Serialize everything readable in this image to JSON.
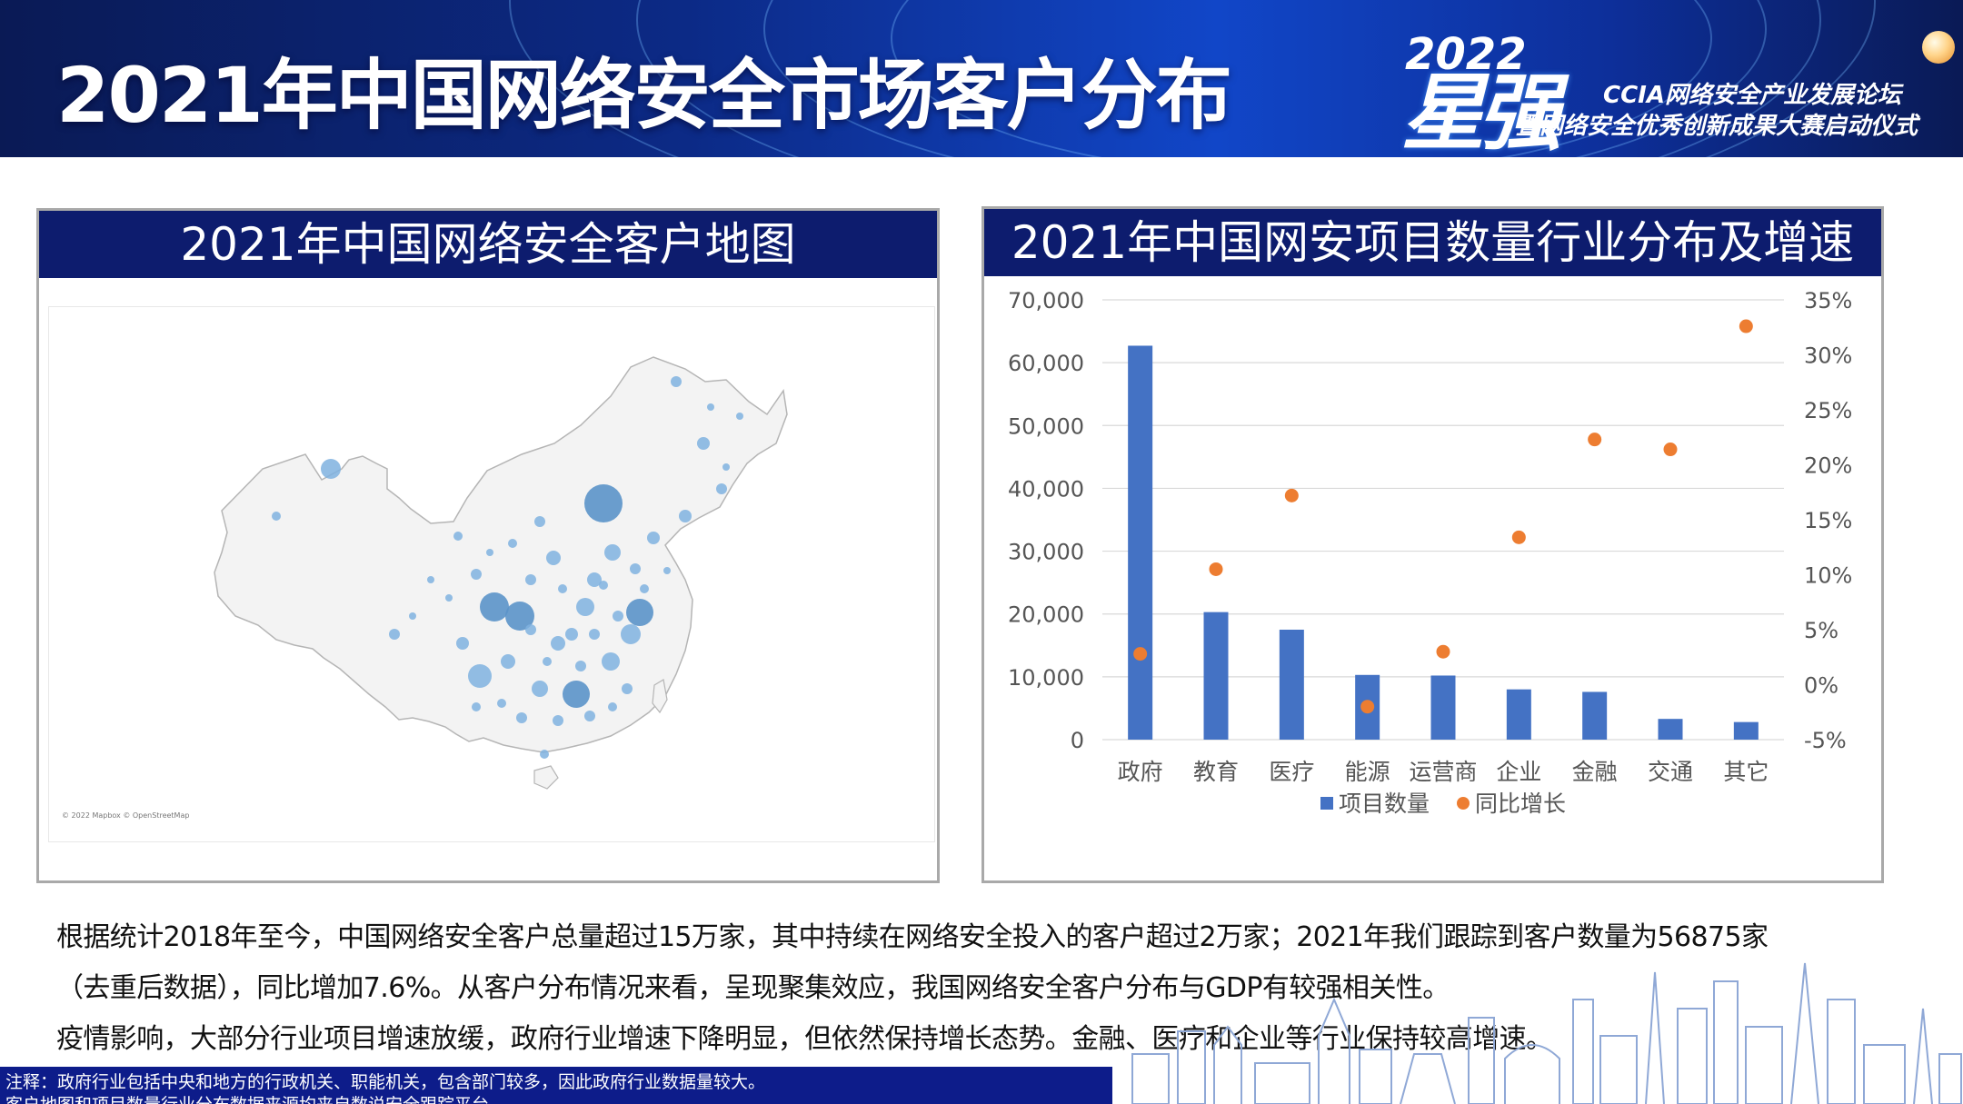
{
  "header": {
    "title": "2021年中国网络安全市场客户分布",
    "logo": {
      "year": "2022",
      "mark": "星强",
      "line1": "CCIA网络安全产业发展论坛",
      "line2": "暨网络安全优秀创新成果大赛启动仪式"
    }
  },
  "map_panel": {
    "title": "2021年中国网络安全客户地图",
    "credit": "© 2022 Mapbox © OpenStreetMap",
    "colors": {
      "bubble": "#7fb2df",
      "bubble_large": "#5b93c9",
      "land": "#f3f3f3",
      "border": "#b5b5b5"
    }
  },
  "chart_panel": {
    "title": "2021年中国网安项目数量行业分布及增速"
  },
  "chart_data": {
    "type": "bar",
    "categories": [
      "政府",
      "教育",
      "医疗",
      "能源",
      "运营商",
      "企业",
      "金融",
      "交通",
      "其它"
    ],
    "series": [
      {
        "name": "项目数量",
        "type": "bar",
        "axis": "left",
        "color": "#4472c4",
        "values": [
          62700,
          20300,
          17500,
          10300,
          10200,
          8000,
          7600,
          3300,
          2800
        ]
      },
      {
        "name": "同比增长",
        "type": "scatter",
        "axis": "right",
        "color": "#ed7d31",
        "values": [
          2.8,
          10.5,
          17.2,
          -2.0,
          3.0,
          13.4,
          22.3,
          21.4,
          32.6
        ]
      }
    ],
    "y_left": {
      "min": 0,
      "max": 70000,
      "ticks": [
        "70,000",
        "60,000",
        "50,000",
        "40,000",
        "30,000",
        "20,000",
        "10,000",
        "0"
      ]
    },
    "y_right": {
      "min": -5,
      "max": 35,
      "ticks": [
        "35%",
        "30%",
        "25%",
        "20%",
        "15%",
        "10%",
        "5%",
        "0%",
        "-5%"
      ]
    },
    "grid": true,
    "legend": "bottom"
  },
  "body": {
    "para1_line1": "根据统计2018年至今，中国网络安全客户总量超过15万家，其中持续在网络安全投入的客户超过2万家；2021年我们跟踪到客户数量为56875家",
    "para1_line2": "（去重后数据），同比增加7.6%。从客户分布情况来看，呈现聚集效应，我国网络安全客户分布与GDP有较强相关性。",
    "para2": "疫情影响，大部分行业项目增速放缓，政府行业增速下降明显，但依然保持增长态势。金融、医疗和企业等行业保持较高增速。"
  },
  "footer": {
    "note1": "注释：政府行业包括中央和地方的行政机关、职能机关，包含部门较多，因此政府行业数据量较大。",
    "note2": "客户地图和项目数量行业分布数据来源均来自数说安全跟踪平台。"
  }
}
